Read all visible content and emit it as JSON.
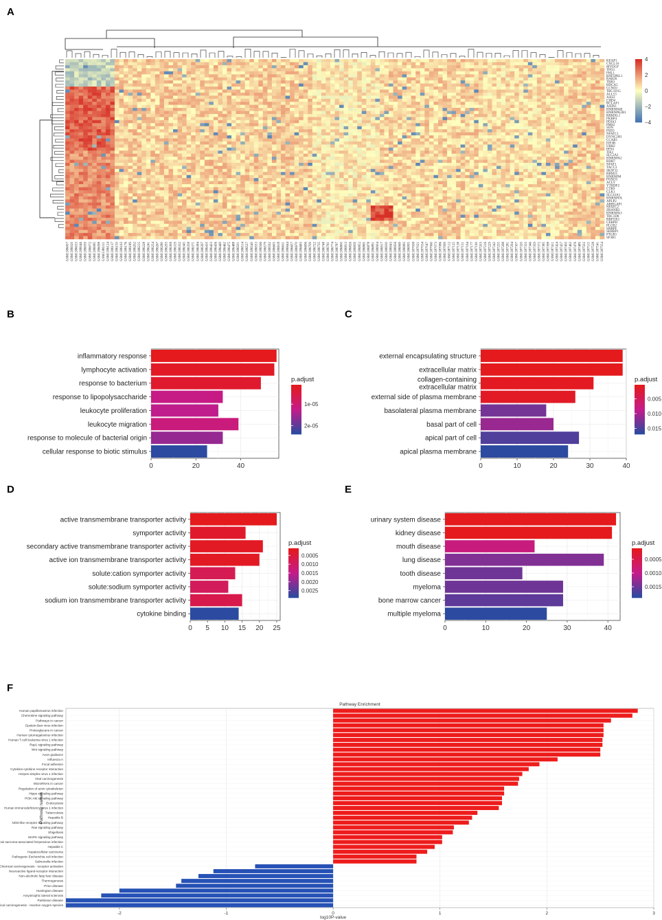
{
  "panel_labels": [
    "A",
    "B",
    "C",
    "D",
    "E",
    "F"
  ],
  "colors": {
    "heat_low": "#4575b4",
    "heat_mid": "#ffffbf",
    "heat_high": "#d73027",
    "padj_low": "#e41a1c",
    "padj_mid": "#c51b8a",
    "padj_high": "#2b4aa0",
    "pos_bar": "#ee1c1c",
    "neg_bar": "#2651b5"
  },
  "chart_data": [
    {
      "id": "A",
      "type": "heatmap",
      "title": "",
      "scale": {
        "ticks": [
          4,
          2,
          0,
          -2,
          -4
        ],
        "range": [
          -4,
          4
        ]
      },
      "row_labels": [
        "KEAP1",
        "CXCL16",
        "MYDGF",
        "TPO3",
        "FHL1",
        "RNF5PEL1",
        "RAB26",
        "TBB3",
        "HDCA5",
        "CCND1",
        "TBC1D15",
        "ALL53",
        "AAS3",
        "CHD4",
        "BCLAF1",
        "AXIN1",
        "HNRNPAB",
        "HNRNPK2B1",
        "RBMXL1",
        "FKBP4",
        "PDIA3",
        "PMS2",
        "SON",
        "PSD3",
        "NFATC1",
        "DYNC2H1",
        "CCAR1",
        "EIF4B",
        "UBR2",
        "PFN1",
        "TIE1",
        "SLC2A1",
        "HNRNPA2",
        "RDH7",
        "NFAT1",
        "TACC3",
        "SKSF11",
        "RBM25",
        "HNRNPM",
        "FOXO3",
        "ACLY",
        "YTHDF2",
        "CTR9",
        "CLK1",
        "SLC43A1",
        "HNRNPDL",
        "APLP2",
        "ARHGAP1",
        "NFATC2",
        "ZRANB2",
        "HNRNPA3",
        "TBC1D8",
        "RBFOX2",
        "CEBPD",
        "PLCB2",
        "SNRPF",
        "SERBP1",
        "PTGR1",
        "SF3B1"
      ],
      "n_cols": 120,
      "col_label_prefix": "GSM"
    },
    {
      "id": "B",
      "type": "bar",
      "orientation": "horizontal",
      "categories": [
        "inflammatory response",
        "lymphocyte activation",
        "response to bacterium",
        "response to lipopolysaccharide",
        "leukocyte proliferation",
        "leukocyte migration",
        "response to molecule of bacterial origin",
        "cellular response to biotic stimulus"
      ],
      "values": [
        56,
        55,
        49,
        32,
        30,
        39,
        32,
        25
      ],
      "padj": [
        1e-06,
        2e-06,
        3e-06,
        1.2e-05,
        1.3e-05,
        1.1e-05,
        1.6e-05,
        2.4e-05
      ],
      "xlim": [
        0,
        57
      ],
      "xticks": [
        0,
        20,
        40
      ],
      "legend_title": "p.adjust",
      "legend_ticks": [
        "1e-05",
        "2e-05"
      ],
      "legend_range": [
        1e-06,
        2.4e-05
      ],
      "legend_tick_values": [
        1e-05,
        2e-05
      ]
    },
    {
      "id": "C",
      "type": "bar",
      "orientation": "horizontal",
      "categories": [
        "external encapsulating structure",
        "extracellular matrix",
        "collagen-containing extracellular matrix",
        "external side of plasma membrane",
        "basolateral plasma membrane",
        "basal part of cell",
        "apical part of cell",
        "apical plasma membrane"
      ],
      "values": [
        39,
        39,
        31,
        26,
        18,
        20,
        27,
        24
      ],
      "padj": [
        0.0002,
        0.0002,
        0.0006,
        0.001,
        0.013,
        0.011,
        0.015,
        0.017
      ],
      "xlim": [
        0,
        40
      ],
      "xticks": [
        0,
        10,
        20,
        30,
        40
      ],
      "legend_title": "p.adjust",
      "legend_ticks": [
        "0.005",
        "0.010",
        "0.015"
      ],
      "legend_range": [
        0.0002,
        0.017
      ],
      "legend_tick_values": [
        0.005,
        0.01,
        0.015
      ]
    },
    {
      "id": "D",
      "type": "bar",
      "orientation": "horizontal",
      "categories": [
        "active transmembrane transporter activity",
        "symporter activity",
        "secondary active transmembrane transporter activity",
        "active ion transmembrane transporter activity",
        "solute:cation symporter activity",
        "solute:sodium symporter activity",
        "sodium ion transmembrane transporter activity",
        "cytokine binding"
      ],
      "values": [
        25,
        16,
        21,
        20,
        13,
        11,
        15,
        14
      ],
      "padj": [
        0.0001,
        0.0003,
        0.0002,
        0.0002,
        0.0008,
        0.0009,
        0.0007,
        0.0029
      ],
      "xlim": [
        0,
        26
      ],
      "xticks": [
        0,
        5,
        10,
        15,
        20,
        25
      ],
      "legend_title": "p.adjust",
      "legend_ticks": [
        "0.0005",
        "0.0010",
        "0.0015",
        "0.0020",
        "0.0025"
      ],
      "legend_range": [
        0.0001,
        0.0029
      ],
      "legend_tick_values": [
        0.0005,
        0.001,
        0.0015,
        0.002,
        0.0025
      ]
    },
    {
      "id": "E",
      "type": "bar",
      "orientation": "horizontal",
      "categories": [
        "urinary system disease",
        "kidney disease",
        "mouth disease",
        "lung disease",
        "tooth disease",
        "myeloma",
        "bone marrow cancer",
        "multiple myeloma"
      ],
      "values": [
        42,
        41,
        22,
        39,
        19,
        29,
        29,
        25
      ],
      "padj": [
        0.0001,
        0.0001,
        0.0009,
        0.0014,
        0.0015,
        0.0015,
        0.0016,
        0.0019
      ],
      "xlim": [
        0,
        43
      ],
      "xticks": [
        0,
        10,
        20,
        30,
        40
      ],
      "legend_title": "p.adjust",
      "legend_ticks": [
        "0.0005",
        "0.0010",
        "0.0015"
      ],
      "legend_range": [
        0.0001,
        0.0019
      ],
      "legend_tick_values": [
        0.0005,
        0.001,
        0.0015
      ]
    },
    {
      "id": "F",
      "type": "bar",
      "orientation": "horizontal",
      "title": "Pathway Enrichment",
      "xlabel": "log10P-value",
      "ylabel": "Pathway names",
      "xlim": [
        -2.5,
        3
      ],
      "xticks": [
        -2,
        -1,
        0,
        1,
        2,
        3
      ],
      "categories": [
        "Human papillomavirus infection",
        "Chemokine signaling pathway",
        "Pathways in cancer",
        "Epstein-Barr virus infection",
        "Proteoglycans in cancer",
        "Human cytomegalovirus infection",
        "Human T-cell leukemia virus 1 infection",
        "Rap1 signaling pathway",
        "Wnt signaling pathway",
        "Axon guidance",
        "Influenza A",
        "Focal adhesion",
        "Cytokine-cytokine receptor interaction",
        "Herpes simplex virus 1 infection",
        "Viral carcinogenesis",
        "MicroRNAs in cancer",
        "Regulation of actin cytoskeleton",
        "Hippo signaling pathway",
        "PI3K-Akt signaling pathway",
        "Endocytosis",
        "Human immunodeficiency virus 1 infection",
        "Tuberculosis",
        "Hepatitis B",
        "NOD-like receptor signaling pathway",
        "Ras signaling pathway",
        "Shigellosis",
        "MAPK signaling pathway",
        "Kaposi sarcoma-associated herpesvirus infection",
        "Hepatitis C",
        "Hepatocellular carcinoma",
        "Pathogenic Escherichia coli infection",
        "Salmonella infection",
        "Chemical carcinogenesis - receptor activation",
        "Neuroactive ligand-receptor interaction",
        "Non-alcoholic fatty liver disease",
        "Thermogenesis",
        "Prion disease",
        "Huntington disease",
        "Amyotrophic lateral sclerosis",
        "Parkinson disease",
        "Chemical carcinogenesis - reactive oxygen species"
      ],
      "values": [
        2.85,
        2.8,
        2.6,
        2.53,
        2.53,
        2.53,
        2.52,
        2.52,
        2.5,
        2.5,
        2.1,
        1.93,
        1.83,
        1.77,
        1.74,
        1.73,
        1.6,
        1.6,
        1.58,
        1.58,
        1.55,
        1.35,
        1.3,
        1.27,
        1.13,
        1.12,
        1.02,
        1.02,
        0.95,
        0.88,
        0.78,
        0.78,
        -0.73,
        -1.12,
        -1.26,
        -1.42,
        -1.47,
        -2.0,
        -2.17,
        -2.5,
        -2.5
      ]
    }
  ]
}
